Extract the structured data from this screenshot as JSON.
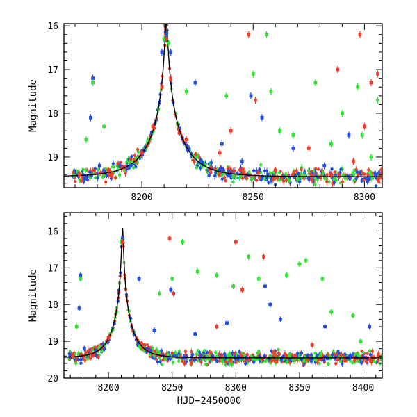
{
  "colors": {
    "blue": "#1f4fe0",
    "green": "#33e033",
    "red": "#f03c28",
    "model": "#000000"
  },
  "chart_data": [
    {
      "type": "scatter",
      "panel": "top",
      "title": "",
      "xlabel": "",
      "ylabel": "Magnitude",
      "xlim": [
        8165,
        8308
      ],
      "ylim": [
        19.7,
        15.95
      ],
      "y_inverted": true,
      "xticks": [
        8200,
        8250,
        8300
      ],
      "yticks": [
        16,
        17,
        18,
        19
      ],
      "xtick_labels": [
        "8200",
        "8250",
        "8300"
      ],
      "ytick_labels": [
        "16",
        "17",
        "18",
        "19"
      ],
      "grid": false,
      "legend": "none",
      "model_curve": {
        "t0": 8211,
        "baseline": 19.45,
        "peak": 16.2,
        "shape": "single-lens microlensing"
      },
      "series": [
        {
          "color": "blue",
          "points": [
            [
              8177,
              18.1
            ],
            [
              8178,
              17.2
            ],
            [
              8181,
              19.2
            ],
            [
              8195,
              19.2
            ],
            [
              8209,
              16.6
            ],
            [
              8210,
              16.3
            ],
            [
              8211,
              16.2
            ],
            [
              8213,
              16.6
            ],
            [
              8224,
              17.3
            ],
            [
              8236,
              18.7
            ],
            [
              8245,
              19.1
            ],
            [
              8249,
              17.6
            ],
            [
              8254,
              18.1
            ],
            [
              8268,
              18.8
            ],
            [
              8270,
              19.5
            ],
            [
              8282,
              19.2
            ],
            [
              8293,
              18.5
            ],
            [
              8302,
              19.5
            ],
            [
              8305,
              19.4
            ]
          ]
        },
        {
          "color": "green",
          "points": [
            [
              8175,
              18.6
            ],
            [
              8178,
              17.3
            ],
            [
              8183,
              18.3
            ],
            [
              8210,
              16.3
            ],
            [
              8212,
              16.4
            ],
            [
              8220,
              17.5
            ],
            [
              8238,
              17.6
            ],
            [
              8250,
              17.1
            ],
            [
              8256,
              16.2
            ],
            [
              8258,
              17.5
            ],
            [
              8262,
              18.4
            ],
            [
              8268,
              18.5
            ],
            [
              8270,
              19.5
            ],
            [
              8278,
              17.3
            ],
            [
              8285,
              18.7
            ],
            [
              8290,
              18.0
            ],
            [
              8297,
              17.4
            ],
            [
              8299,
              18.5
            ],
            [
              8303,
              19.0
            ],
            [
              8306,
              17.7
            ]
          ]
        },
        {
          "color": "red",
          "points": [
            [
              8172,
              19.4
            ],
            [
              8185,
              19.3
            ],
            [
              8200,
              18.9
            ],
            [
              8205,
              18.3
            ],
            [
              8209,
              17.4
            ],
            [
              8211,
              16.3
            ],
            [
              8213,
              17.2
            ],
            [
              8220,
              18.6
            ],
            [
              8235,
              18.9
            ],
            [
              8240,
              18.4
            ],
            [
              8245,
              19.3
            ],
            [
              8248,
              16.2
            ],
            [
              8251,
              17.7
            ],
            [
              8260,
              19.3
            ],
            [
              8275,
              18.8
            ],
            [
              8285,
              19.4
            ],
            [
              8288,
              17.0
            ],
            [
              8295,
              19.1
            ],
            [
              8298,
              16.2
            ],
            [
              8300,
              18.3
            ],
            [
              8303,
              17.3
            ],
            [
              8306,
              17.1
            ]
          ]
        }
      ]
    },
    {
      "type": "scatter",
      "panel": "bottom",
      "title": "",
      "xlabel": "HJD−2450000",
      "ylabel": "Magnitude",
      "xlim": [
        8165,
        8415
      ],
      "ylim": [
        20.0,
        15.5
      ],
      "y_inverted": true,
      "xticks": [
        8200,
        8250,
        8300,
        8350,
        8400
      ],
      "yticks": [
        16,
        17,
        18,
        19,
        20
      ],
      "xtick_labels": [
        "8200",
        "8250",
        "8300",
        "8350",
        "8400"
      ],
      "ytick_labels": [
        "16",
        "17",
        "18",
        "19",
        "20"
      ],
      "grid": false,
      "legend": "none",
      "model_curve": {
        "t0": 8211,
        "baseline": 19.45,
        "peak": 16.2,
        "shape": "single-lens microlensing"
      },
      "series": [
        {
          "color": "blue",
          "points": [
            [
              8177,
              18.1
            ],
            [
              8178,
              17.2
            ],
            [
              8181,
              19.2
            ],
            [
              8210,
              16.3
            ],
            [
              8211,
              16.2
            ],
            [
              8224,
              17.3
            ],
            [
              8236,
              18.7
            ],
            [
              8249,
              17.6
            ],
            [
              8268,
              18.8
            ],
            [
              8293,
              18.5
            ],
            [
              8323,
              17.5
            ],
            [
              8327,
              18.0
            ],
            [
              8335,
              18.4
            ],
            [
              8370,
              18.6
            ],
            [
              8390,
              19.4
            ],
            [
              8405,
              18.6
            ]
          ]
        },
        {
          "color": "green",
          "points": [
            [
              8175,
              18.6
            ],
            [
              8178,
              17.3
            ],
            [
              8210,
              16.3
            ],
            [
              8240,
              17.7
            ],
            [
              8250,
              17.3
            ],
            [
              8258,
              16.3
            ],
            [
              8270,
              17.1
            ],
            [
              8285,
              17.2
            ],
            [
              8298,
              17.5
            ],
            [
              8310,
              16.7
            ],
            [
              8318,
              17.3
            ],
            [
              8340,
              17.2
            ],
            [
              8350,
              16.9
            ],
            [
              8355,
              16.8
            ],
            [
              8368,
              17.3
            ],
            [
              8375,
              18.2
            ],
            [
              8392,
              18.3
            ],
            [
              8398,
              19.0
            ]
          ]
        },
        {
          "color": "red",
          "points": [
            [
              8172,
              19.4
            ],
            [
              8200,
              18.9
            ],
            [
              8211,
              16.3
            ],
            [
              8248,
              16.2
            ],
            [
              8251,
              17.7
            ],
            [
              8265,
              19.6
            ],
            [
              8285,
              18.6
            ],
            [
              8300,
              16.3
            ],
            [
              8305,
              17.6
            ],
            [
              8322,
              16.7
            ],
            [
              8330,
              19.3
            ],
            [
              8360,
              19.1
            ],
            [
              8380,
              19.5
            ],
            [
              8405,
              19.5
            ]
          ]
        }
      ]
    }
  ]
}
